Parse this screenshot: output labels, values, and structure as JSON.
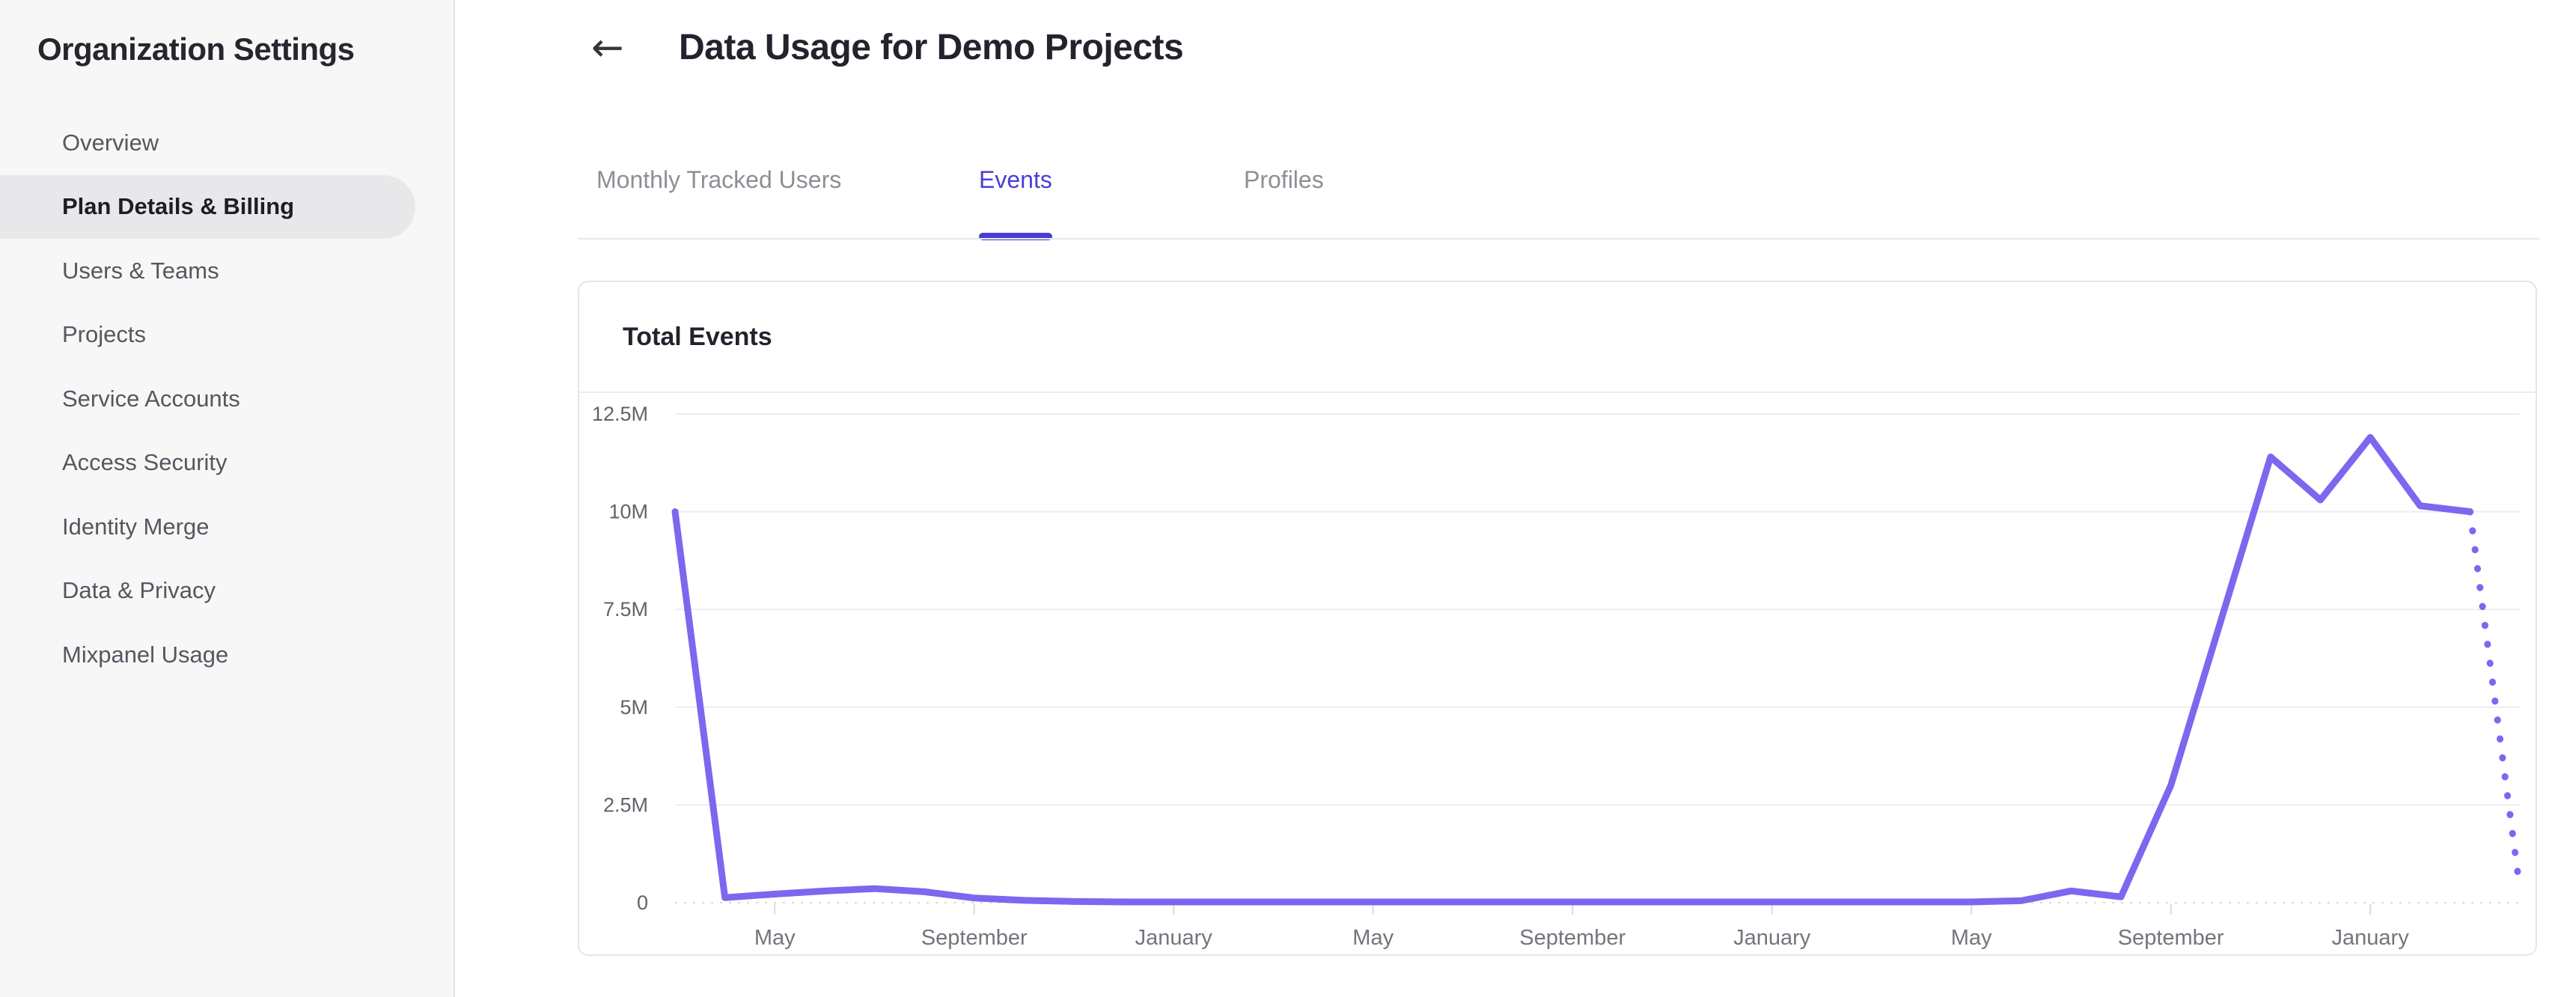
{
  "sidebar": {
    "title": "Organization Settings",
    "items": [
      {
        "label": "Overview",
        "selected": false
      },
      {
        "label": "Plan Details & Billing",
        "selected": true
      },
      {
        "label": "Users & Teams",
        "selected": false
      },
      {
        "label": "Projects",
        "selected": false
      },
      {
        "label": "Service Accounts",
        "selected": false
      },
      {
        "label": "Access Security",
        "selected": false
      },
      {
        "label": "Identity Merge",
        "selected": false
      },
      {
        "label": "Data & Privacy",
        "selected": false
      },
      {
        "label": "Mixpanel Usage",
        "selected": false
      }
    ]
  },
  "header": {
    "back_icon": "←",
    "title": "Data Usage for Demo Projects"
  },
  "tabs": [
    {
      "label": "Monthly Tracked Users",
      "active": false
    },
    {
      "label": "Events",
      "active": true
    },
    {
      "label": "Profiles",
      "active": false
    }
  ],
  "card": {
    "title": "Total Events"
  },
  "colors": {
    "accent": "#4a3fd5",
    "line": "#7b68ee",
    "sidebar_bg": "#f7f7f8",
    "selected_pill": "#e8e8ea",
    "grid": "#ededf0",
    "zero_line": "#d8d8dc"
  },
  "chart_data": {
    "type": "line",
    "title": "Total Events",
    "unit": "events per month (millions)",
    "grid": "horizontal",
    "legend": "none",
    "y_max_millions": 12.5,
    "ylim": [
      0,
      12500000
    ],
    "last_point_projected": true,
    "line_color": "#7b68ee",
    "point_months": [
      "Mar",
      "Apr",
      "May",
      "Jun",
      "Jul",
      "Aug",
      "Sep",
      "Oct",
      "Nov",
      "Dec",
      "Jan",
      "Feb",
      "Mar",
      "Apr",
      "May",
      "Jun",
      "Jul",
      "Aug",
      "Sep",
      "Oct",
      "Nov",
      "Dec",
      "Jan",
      "Feb",
      "Mar",
      "Apr",
      "May",
      "Jun",
      "Jul",
      "Aug",
      "Sep",
      "Oct",
      "Nov",
      "Dec",
      "Jan",
      "Feb",
      "Mar",
      "Apr"
    ],
    "values_millions": [
      10.0,
      0.13,
      0.22,
      0.3,
      0.36,
      0.28,
      0.12,
      0.06,
      0.03,
      0.02,
      0.02,
      0.02,
      0.02,
      0.02,
      0.02,
      0.02,
      0.02,
      0.02,
      0.02,
      0.02,
      0.02,
      0.02,
      0.02,
      0.02,
      0.02,
      0.02,
      0.02,
      0.05,
      0.3,
      0.15,
      3.0,
      7.2,
      11.4,
      10.3,
      11.9,
      10.15,
      10.0,
      0.35
    ],
    "x_ticks": [
      {
        "index": 2,
        "label": "May"
      },
      {
        "index": 6,
        "label": "September"
      },
      {
        "index": 10,
        "label": "January"
      },
      {
        "index": 14,
        "label": "May"
      },
      {
        "index": 18,
        "label": "September"
      },
      {
        "index": 22,
        "label": "January"
      },
      {
        "index": 26,
        "label": "May"
      },
      {
        "index": 30,
        "label": "September"
      },
      {
        "index": 34,
        "label": "January"
      }
    ],
    "y_ticks": [
      {
        "value": 0,
        "label": "0"
      },
      {
        "value": 2.5,
        "label": "2.5M"
      },
      {
        "value": 5,
        "label": "5M"
      },
      {
        "value": 7.5,
        "label": "7.5M"
      },
      {
        "value": 10,
        "label": "10M"
      },
      {
        "value": 12.5,
        "label": "12.5M"
      }
    ]
  }
}
